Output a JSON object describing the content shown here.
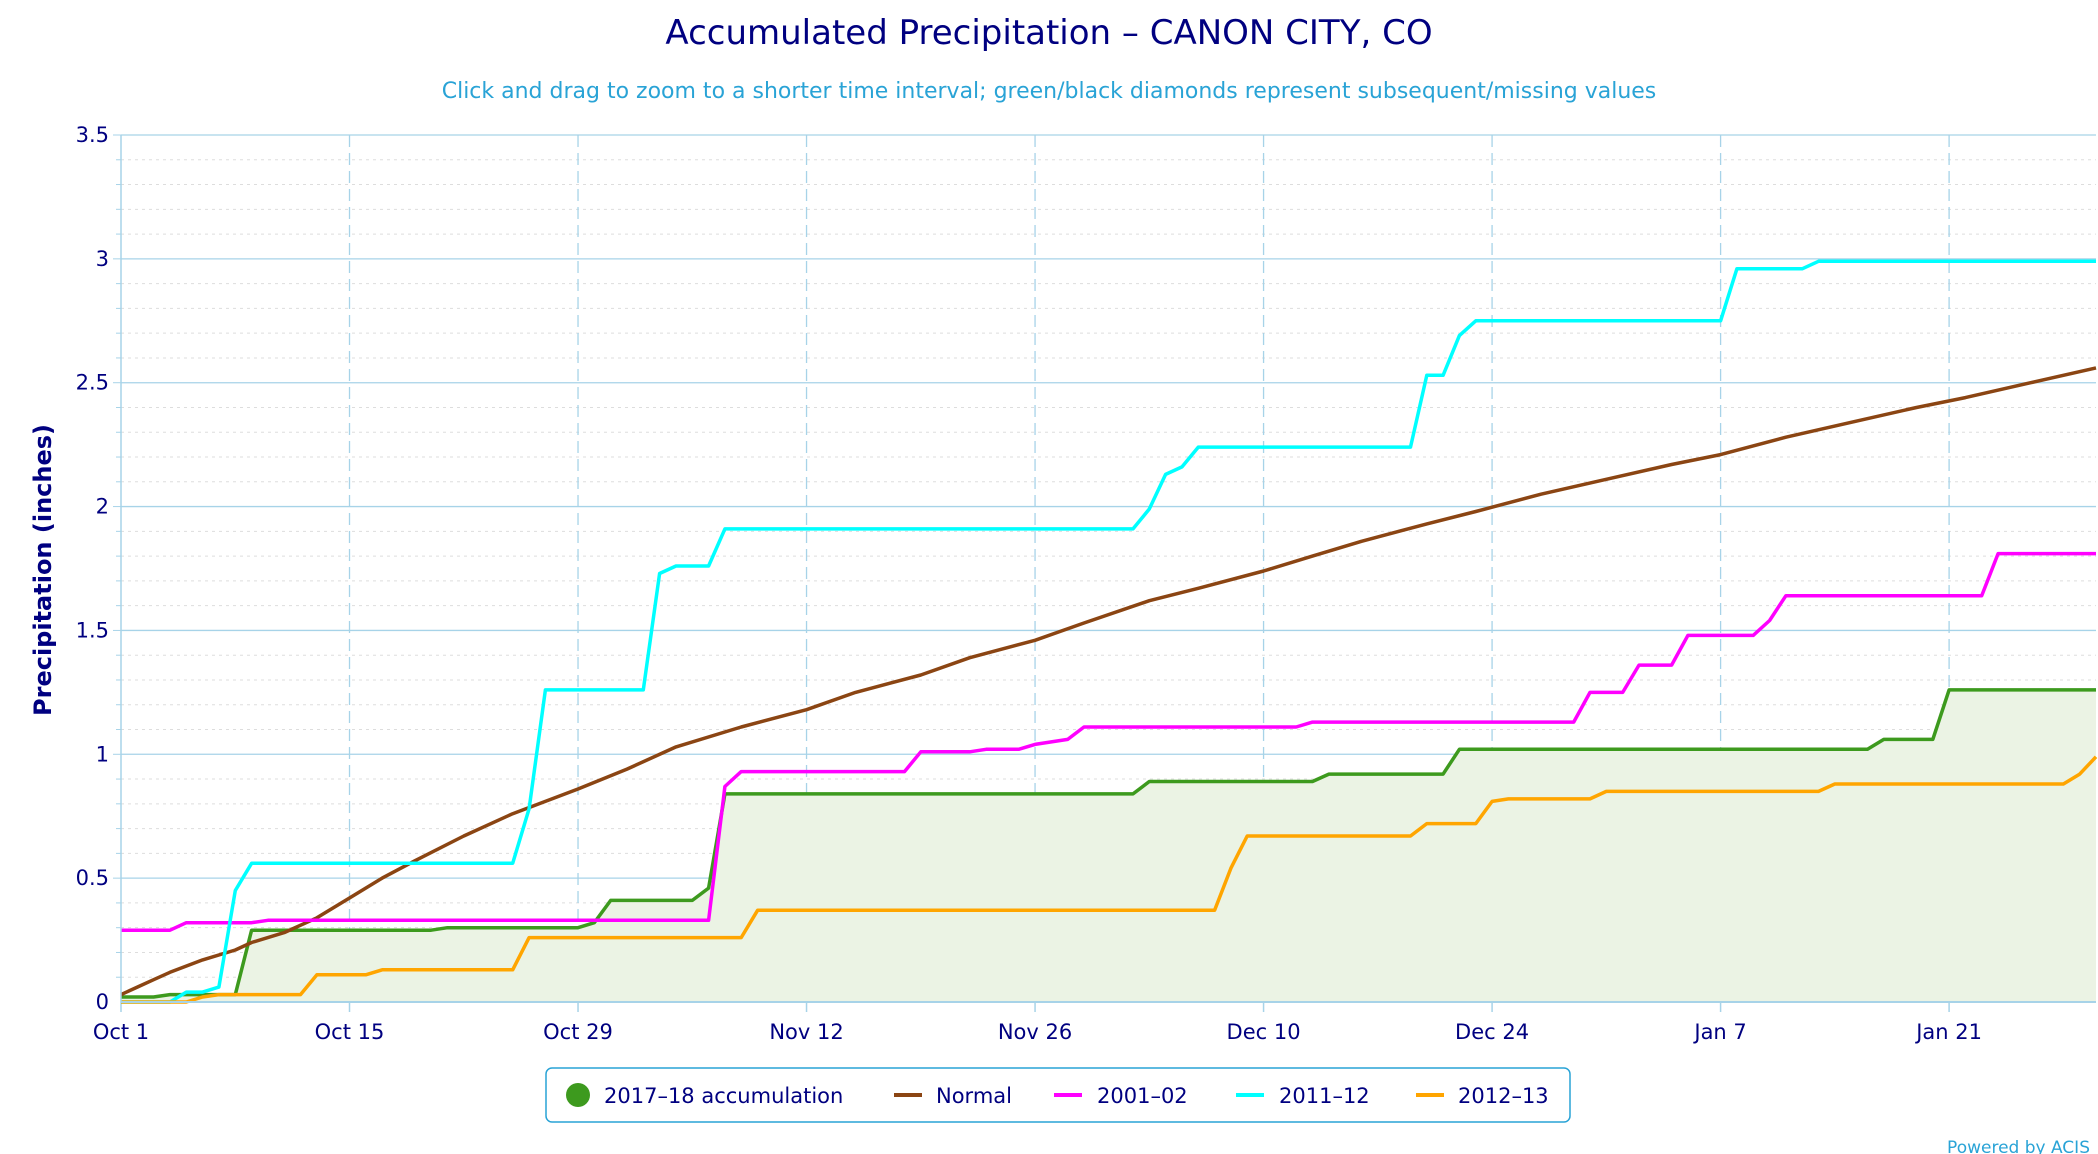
{
  "title": "Accumulated Precipitation – CANON CITY, CO",
  "subtitle": "Click and drag to zoom to a shorter time interval; green/black diamonds represent subsequent/missing values",
  "credit": "Powered by ACIS",
  "colors": {
    "accumulation": "#3D9A1E",
    "accumulation_fill": "#EBF3E4",
    "normal": "#8B4513",
    "s2001": "#FF00FF",
    "s2011": "#00FFFF",
    "s2012": "#FFA500",
    "grid": "#A7D3E8",
    "grid_minor": "#DDDDDD",
    "text": "#000080"
  },
  "chart_data": {
    "type": "line",
    "title": "Accumulated Precipitation – CANON CITY, CO",
    "ylabel": "Precipitation (inches)",
    "ylim": [
      0,
      3.5
    ],
    "yticks": [
      "0",
      "0.5",
      "1",
      "1.5",
      "2",
      "2.5",
      "3",
      "3.5"
    ],
    "xlim": [
      "Oct 1",
      "Jan 30"
    ],
    "xticks": [
      "Oct 1",
      "Oct 15",
      "Oct 29",
      "Nov 12",
      "Nov 26",
      "Dec 10",
      "Dec 24",
      "Jan 7",
      "Jan 21"
    ],
    "grid": true,
    "legend_position": "bottom-center",
    "series": [
      {
        "name": "2017-18 accumulation",
        "legend": "2017–18 accumulation",
        "style": "area",
        "points": [
          [
            "Oct 1",
            0.02
          ],
          [
            "Oct 3",
            0.02
          ],
          [
            "Oct 4",
            0.03
          ],
          [
            "Oct 8",
            0.03
          ],
          [
            "Oct 9",
            0.29
          ],
          [
            "Oct 20",
            0.29
          ],
          [
            "Oct 21",
            0.3
          ],
          [
            "Oct 29",
            0.3
          ],
          [
            "Oct 30",
            0.32
          ],
          [
            "Oct 31",
            0.41
          ],
          [
            "Nov 5",
            0.41
          ],
          [
            "Nov 6",
            0.46
          ],
          [
            "Nov 7",
            0.84
          ],
          [
            "Dec 2",
            0.84
          ],
          [
            "Dec 3",
            0.89
          ],
          [
            "Dec 9",
            0.89
          ],
          [
            "Dec 13",
            0.89
          ],
          [
            "Dec 14",
            0.92
          ],
          [
            "Dec 21",
            0.92
          ],
          [
            "Dec 22",
            1.02
          ],
          [
            "Jan 16",
            1.02
          ],
          [
            "Jan 17",
            1.06
          ],
          [
            "Jan 20",
            1.06
          ],
          [
            "Jan 21",
            1.26
          ],
          [
            "Jan 30",
            1.26
          ]
        ]
      },
      {
        "name": "Normal",
        "legend": "Normal",
        "style": "line",
        "points": [
          [
            "Oct 1",
            0.03
          ],
          [
            "Oct 2",
            0.06
          ],
          [
            "Oct 3",
            0.09
          ],
          [
            "Oct 4",
            0.12
          ],
          [
            "Oct 6",
            0.17
          ],
          [
            "Oct 8",
            0.21
          ],
          [
            "Oct 9",
            0.24
          ],
          [
            "Oct 11",
            0.28
          ],
          [
            "Oct 13",
            0.34
          ],
          [
            "Oct 15",
            0.42
          ],
          [
            "Oct 17",
            0.5
          ],
          [
            "Oct 19",
            0.57
          ],
          [
            "Oct 22",
            0.67
          ],
          [
            "Oct 25",
            0.76
          ],
          [
            "Oct 29",
            0.86
          ],
          [
            "Nov 1",
            0.94
          ],
          [
            "Nov 4",
            1.03
          ],
          [
            "Nov 8",
            1.11
          ],
          [
            "Nov 12",
            1.18
          ],
          [
            "Nov 15",
            1.25
          ],
          [
            "Nov 19",
            1.32
          ],
          [
            "Nov 22",
            1.39
          ],
          [
            "Nov 26",
            1.46
          ],
          [
            "Nov 29",
            1.53
          ],
          [
            "Dec 3",
            1.62
          ],
          [
            "Dec 6",
            1.67
          ],
          [
            "Dec 10",
            1.74
          ],
          [
            "Dec 13",
            1.8
          ],
          [
            "Dec 16",
            1.86
          ],
          [
            "Dec 20",
            1.93
          ],
          [
            "Dec 23",
            1.98
          ],
          [
            "Dec 27",
            2.05
          ],
          [
            "Dec 31",
            2.11
          ],
          [
            "Jan 4",
            2.17
          ],
          [
            "Jan 7",
            2.21
          ],
          [
            "Jan 11",
            2.28
          ],
          [
            "Jan 15",
            2.34
          ],
          [
            "Jan 19",
            2.4
          ],
          [
            "Jan 22",
            2.44
          ],
          [
            "Jan 26",
            2.5
          ],
          [
            "Jan 30",
            2.56
          ]
        ]
      },
      {
        "name": "2001-02",
        "legend": "2001–02",
        "style": "line",
        "points": [
          [
            "Oct 1",
            0.29
          ],
          [
            "Oct 4",
            0.29
          ],
          [
            "Oct 5",
            0.32
          ],
          [
            "Oct 9",
            0.32
          ],
          [
            "Oct 10",
            0.33
          ],
          [
            "Nov 6",
            0.33
          ],
          [
            "Nov 7",
            0.87
          ],
          [
            "Nov 8",
            0.93
          ],
          [
            "Nov 18",
            0.93
          ],
          [
            "Nov 19",
            1.01
          ],
          [
            "Nov 22",
            1.01
          ],
          [
            "Nov 23",
            1.02
          ],
          [
            "Nov 25",
            1.02
          ],
          [
            "Nov 26",
            1.04
          ],
          [
            "Nov 28",
            1.06
          ],
          [
            "Nov 29",
            1.11
          ],
          [
            "Dec 12",
            1.11
          ],
          [
            "Dec 13",
            1.13
          ],
          [
            "Dec 29",
            1.13
          ],
          [
            "Dec 30",
            1.25
          ],
          [
            "Jan 1",
            1.25
          ],
          [
            "Jan 2",
            1.36
          ],
          [
            "Jan 4",
            1.36
          ],
          [
            "Jan 5",
            1.48
          ],
          [
            "Jan 9",
            1.48
          ],
          [
            "Jan 10",
            1.54
          ],
          [
            "Jan 11",
            1.64
          ],
          [
            "Jan 23",
            1.64
          ],
          [
            "Jan 24",
            1.81
          ],
          [
            "Jan 30",
            1.81
          ]
        ]
      },
      {
        "name": "2011-12",
        "legend": "2011–12",
        "style": "line",
        "points": [
          [
            "Oct 1",
            0.0
          ],
          [
            "Oct 4",
            0.0
          ],
          [
            "Oct 5",
            0.04
          ],
          [
            "Oct 6",
            0.04
          ],
          [
            "Oct 7",
            0.06
          ],
          [
            "Oct 8",
            0.45
          ],
          [
            "Oct 9",
            0.56
          ],
          [
            "Oct 25",
            0.56
          ],
          [
            "Oct 26",
            0.78
          ],
          [
            "Oct 27",
            1.26
          ],
          [
            "Nov 2",
            1.26
          ],
          [
            "Nov 3",
            1.73
          ],
          [
            "Nov 4",
            1.76
          ],
          [
            "Nov 6",
            1.76
          ],
          [
            "Nov 7",
            1.91
          ],
          [
            "Dec 2",
            1.91
          ],
          [
            "Dec 3",
            1.99
          ],
          [
            "Dec 4",
            2.13
          ],
          [
            "Dec 5",
            2.16
          ],
          [
            "Dec 6",
            2.24
          ],
          [
            "Dec 19",
            2.24
          ],
          [
            "Dec 20",
            2.53
          ],
          [
            "Dec 21",
            2.53
          ],
          [
            "Dec 22",
            2.69
          ],
          [
            "Dec 23",
            2.75
          ],
          [
            "Jan 7",
            2.75
          ],
          [
            "Jan 8",
            2.96
          ],
          [
            "Jan 12",
            2.96
          ],
          [
            "Jan 13",
            2.99
          ],
          [
            "Jan 30",
            2.99
          ]
        ]
      },
      {
        "name": "2012-13",
        "legend": "2012–13",
        "style": "line",
        "points": [
          [
            "Oct 1",
            0.0
          ],
          [
            "Oct 5",
            0.0
          ],
          [
            "Oct 6",
            0.02
          ],
          [
            "Oct 7",
            0.03
          ],
          [
            "Oct 12",
            0.03
          ],
          [
            "Oct 13",
            0.11
          ],
          [
            "Oct 16",
            0.11
          ],
          [
            "Oct 17",
            0.13
          ],
          [
            "Oct 25",
            0.13
          ],
          [
            "Oct 26",
            0.26
          ],
          [
            "Nov 8",
            0.26
          ],
          [
            "Nov 9",
            0.37
          ],
          [
            "Dec 7",
            0.37
          ],
          [
            "Dec 8",
            0.54
          ],
          [
            "Dec 9",
            0.67
          ],
          [
            "Dec 19",
            0.67
          ],
          [
            "Dec 20",
            0.72
          ],
          [
            "Dec 23",
            0.72
          ],
          [
            "Dec 24",
            0.81
          ],
          [
            "Dec 25",
            0.82
          ],
          [
            "Dec 30",
            0.82
          ],
          [
            "Dec 31",
            0.85
          ],
          [
            "Jan 13",
            0.85
          ],
          [
            "Jan 14",
            0.88
          ],
          [
            "Jan 28",
            0.88
          ],
          [
            "Jan 29",
            0.92
          ],
          [
            "Jan 30",
            0.99
          ]
        ]
      }
    ]
  }
}
